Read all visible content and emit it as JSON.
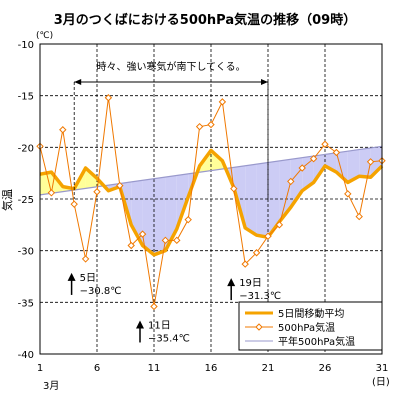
{
  "chart_data": {
    "type": "line",
    "title": "3月のつくばにおける500hPa気温の推移（09時）",
    "ylabel": "気温",
    "yunit": "(℃)",
    "xunit": "(日)",
    "month_label": "3月",
    "xlim": [
      1,
      31
    ],
    "ylim": [
      -40,
      -10
    ],
    "x_ticks": [
      1,
      6,
      11,
      16,
      21,
      26,
      31
    ],
    "y_ticks": [
      -10,
      -15,
      -20,
      -25,
      -30,
      -35,
      -40
    ],
    "y_tick_labels": [
      "-10",
      "-15",
      "-20",
      "-25",
      "-30",
      "-35",
      "-40"
    ],
    "grid": true,
    "legend_position": "bottom-right",
    "colors": {
      "moving_avg": "#f5a300",
      "daily": "#f07800",
      "normal": "#9999cc",
      "fill_above": "#ffff99",
      "fill_below": "#ccccf5"
    },
    "series": [
      {
        "name": "5日間移動平均",
        "x": [
          1,
          2,
          3,
          4,
          5,
          6,
          7,
          8,
          9,
          10,
          11,
          12,
          13,
          14,
          15,
          16,
          17,
          18,
          19,
          20,
          21,
          22,
          23,
          24,
          25,
          26,
          27,
          28,
          29,
          30,
          31
        ],
        "values": [
          -22.6,
          -22.4,
          -23.8,
          -24.0,
          -22.0,
          -23.0,
          -24.2,
          -23.8,
          -27.5,
          -29.5,
          -30.4,
          -30.0,
          -27.9,
          -24.8,
          -21.8,
          -20.3,
          -21.3,
          -23.9,
          -27.8,
          -28.5,
          -28.7,
          -27.2,
          -25.8,
          -24.2,
          -23.4,
          -21.8,
          -22.4,
          -23.4,
          -22.8,
          -22.9,
          -21.8
        ]
      },
      {
        "name": "500hPa気温",
        "x": [
          1,
          2,
          3,
          4,
          5,
          6,
          7,
          8,
          9,
          10,
          11,
          12,
          13,
          14,
          15,
          16,
          17,
          18,
          19,
          20,
          21,
          22,
          23,
          24,
          25,
          26,
          27,
          28,
          29,
          30,
          31
        ],
        "values": [
          -19.9,
          -24.4,
          -18.3,
          -25.5,
          -30.8,
          -24.3,
          -15.2,
          -23.7,
          -29.5,
          -28.4,
          -35.4,
          -29.0,
          -29.0,
          -27.0,
          -18.0,
          -17.8,
          -15.6,
          -24.0,
          -31.3,
          -30.2,
          -28.6,
          -27.5,
          -23.3,
          -22.0,
          -21.1,
          -19.7,
          -20.5,
          -24.5,
          -26.7,
          -21.4,
          -21.3
        ]
      },
      {
        "name": "平年500hPa気温",
        "x": [
          1,
          31
        ],
        "values": [
          -24.6,
          -19.9
        ]
      }
    ],
    "annotations": {
      "period_text": "時々、強い寒気が南下してくる。",
      "period_start_day": 4,
      "period_end_day": 21,
      "callouts": [
        {
          "day": 5,
          "label_day": "5日",
          "label_value": "−30.8℃",
          "value": -30.8
        },
        {
          "day": 11,
          "label_day": "11日",
          "label_value": "−35.4℃",
          "value": -35.4
        },
        {
          "day": 19,
          "label_day": "19日",
          "label_value": "−31.3℃",
          "value": -31.3
        }
      ]
    }
  }
}
